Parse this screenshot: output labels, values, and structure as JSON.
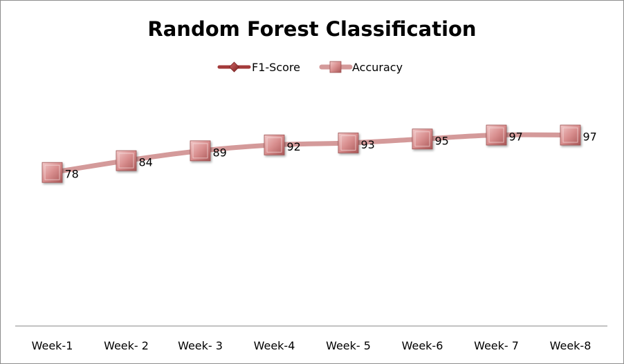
{
  "chart_data": {
    "type": "line",
    "title": "Random Forest Classification",
    "categories": [
      "Week-1",
      "Week- 2",
      "Week- 3",
      "Week-4",
      "Week- 5",
      "Week-6",
      "Week- 7",
      "Week-8"
    ],
    "series": [
      {
        "name": "F1-Score",
        "values": [
          78,
          84,
          89,
          92,
          93,
          95,
          97,
          97
        ],
        "color": "#a33a3a",
        "marker": "diamond"
      },
      {
        "name": "Accuracy",
        "values": [
          78,
          84,
          89,
          92,
          93,
          95,
          97,
          97
        ],
        "color": "#d49a9a",
        "marker": "square",
        "data_labels": [
          "78",
          "84",
          "89",
          "92",
          "93",
          "95",
          "97",
          "97"
        ]
      }
    ],
    "xlabel": "",
    "ylabel": "",
    "ylim": [
      0,
      120
    ],
    "grid": false,
    "legend_position": "top"
  }
}
